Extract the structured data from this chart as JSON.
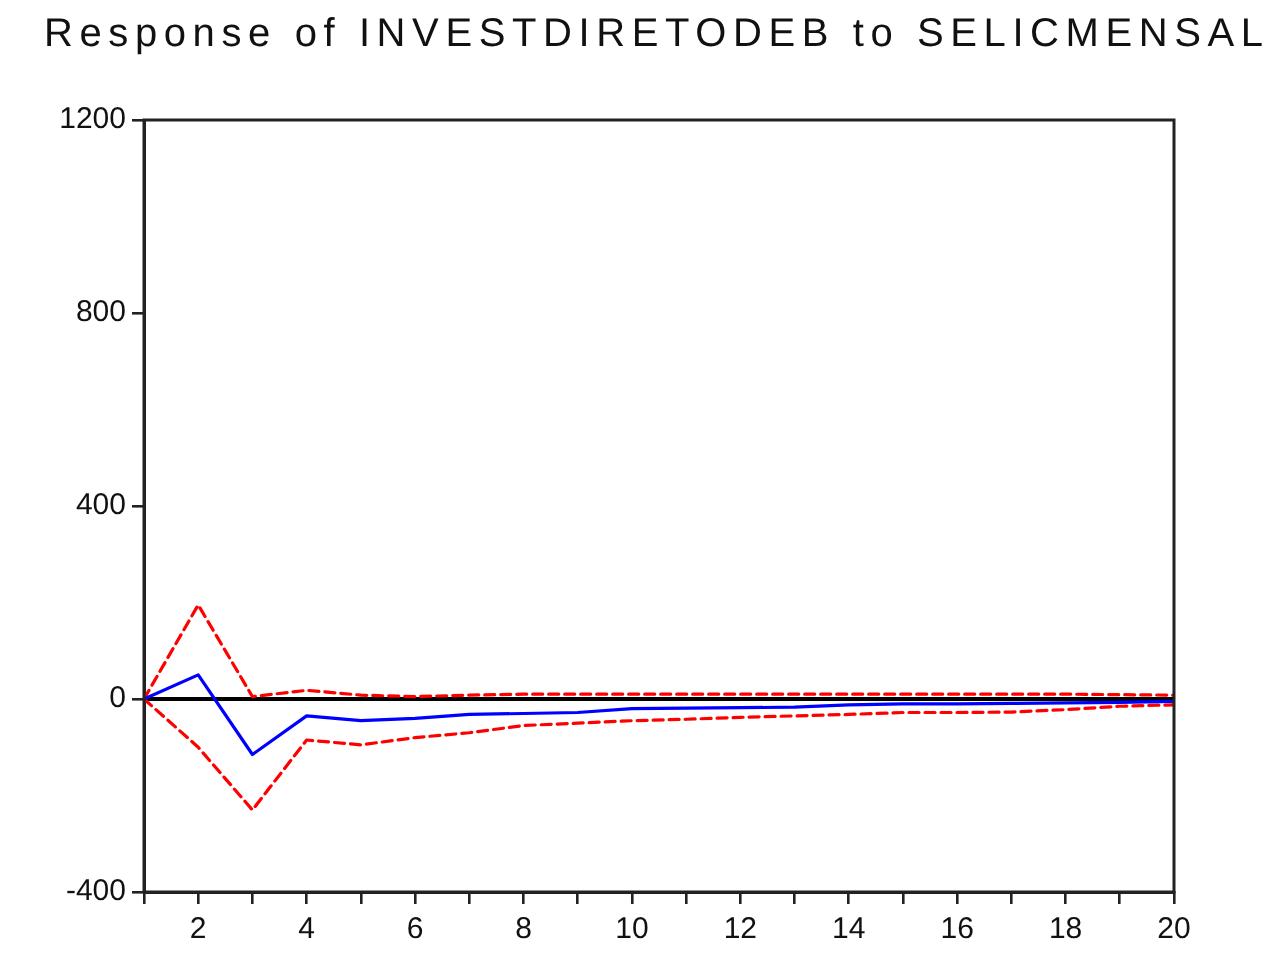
{
  "chart_data": {
    "type": "line",
    "title": "Response of INVESTDIRETODEB to SELICMENSAL",
    "x": [
      1,
      2,
      3,
      4,
      5,
      6,
      7,
      8,
      9,
      10,
      11,
      12,
      13,
      14,
      15,
      16,
      17,
      18,
      19,
      20
    ],
    "series": [
      {
        "color": "#0000ff",
        "values": [
          0,
          50,
          -115,
          -35,
          -45,
          -40,
          -32,
          -30,
          -28,
          -20,
          -19,
          -18,
          -17,
          -12,
          -10,
          -10,
          -9,
          -8,
          -7,
          -5
        ]
      },
      {
        "color": "#ff0000",
        "line_style": "dashed",
        "values": [
          0,
          195,
          5,
          18,
          8,
          5,
          8,
          10,
          10,
          10,
          10,
          10,
          10,
          10,
          10,
          10,
          10,
          10,
          9,
          8
        ]
      },
      {
        "color": "#ff0000",
        "line_style": "dashed",
        "values": [
          0,
          -100,
          -230,
          -85,
          -95,
          -80,
          -70,
          -55,
          -50,
          -45,
          -42,
          -38,
          -35,
          -32,
          -28,
          -28,
          -27,
          -22,
          -15,
          -12
        ]
      }
    ],
    "xlim": [
      1,
      20
    ],
    "xticks": [
      {
        "value": 1,
        "label": null
      },
      2,
      {
        "value": 3,
        "label": null
      },
      4,
      {
        "value": 5,
        "label": null
      },
      6,
      {
        "value": 7,
        "label": null
      },
      8,
      {
        "value": 9,
        "label": null
      },
      10,
      {
        "value": 11,
        "label": null
      },
      12,
      {
        "value": 13,
        "label": null
      },
      14,
      {
        "value": 15,
        "label": null
      },
      16,
      {
        "value": 17,
        "label": null
      },
      18,
      {
        "value": 19,
        "label": null
      },
      20
    ],
    "ylim": [
      -400,
      1200
    ],
    "yticks": [
      -400,
      0,
      400,
      800,
      1200
    ],
    "ref_lines": [
      {
        "axis": "y",
        "value": 0,
        "color": "#000000"
      }
    ]
  }
}
